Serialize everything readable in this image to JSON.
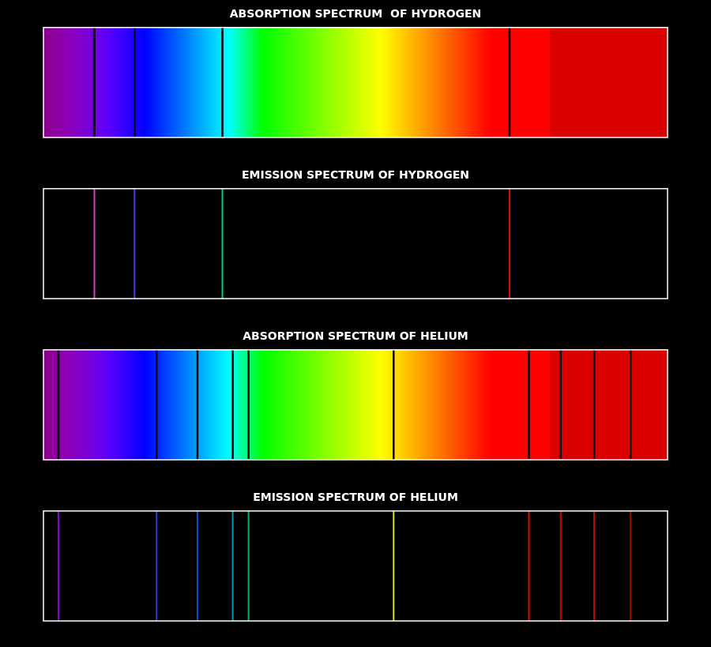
{
  "chart_data": [
    {
      "type": "absorption",
      "title": "ABSORPTION SPECTRUM  OF HYDROGEN",
      "x": [
        410.2,
        434.0,
        486.1,
        656.3
      ],
      "color": "#000000",
      "xlim": [
        380,
        750
      ],
      "ylim": [
        0,
        1
      ],
      "tick_labels": false,
      "grid": false
    },
    {
      "type": "emission",
      "title": "EMISSION SPECTRUM OF HYDROGEN",
      "x": [
        410.2,
        434.0,
        486.1,
        656.3
      ],
      "colors": [
        "#cc44cc",
        "#4444dd",
        "#00cc99",
        "#dd1100"
      ],
      "xlim": [
        380,
        750
      ],
      "ylim": [
        0,
        1
      ],
      "tick_labels": false,
      "grid": false
    },
    {
      "type": "absorption",
      "title": "ABSORPTION SPECTRUM OF HELIUM",
      "x": [
        388.9,
        447.1,
        471.3,
        492.2,
        501.6,
        587.6,
        667.8,
        686.7,
        706.5,
        728.1
      ],
      "color": "#000000",
      "xlim": [
        380,
        750
      ],
      "ylim": [
        0,
        1
      ],
      "tick_labels": false,
      "grid": false
    },
    {
      "type": "emission",
      "title": "EMISSION SPECTRUM OF HELIUM",
      "x": [
        388.9,
        447.1,
        471.3,
        492.2,
        501.6,
        587.6,
        667.8,
        686.7,
        706.5,
        728.1
      ],
      "colors": [
        "#8800cc",
        "#2244cc",
        "#0055cc",
        "#0099bb",
        "#00bb55",
        "#dddd00",
        "#dd1100",
        "#cc0000",
        "#bb1100",
        "#991100"
      ],
      "xlim": [
        380,
        750
      ],
      "ylim": [
        0,
        1
      ],
      "tick_labels": false,
      "grid": false
    }
  ]
}
